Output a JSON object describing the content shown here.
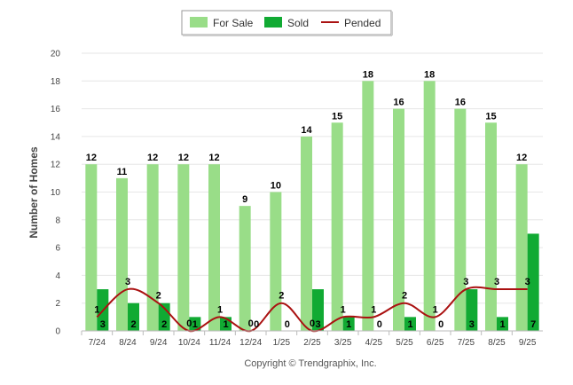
{
  "chart_data": {
    "type": "bar",
    "categories": [
      "7/24",
      "8/24",
      "9/24",
      "10/24",
      "11/24",
      "12/24",
      "1/25",
      "2/25",
      "3/25",
      "4/25",
      "5/25",
      "6/25",
      "7/25",
      "8/25",
      "9/25"
    ],
    "series": [
      {
        "name": "For Sale",
        "kind": "bar",
        "color": "#99dd88",
        "values": [
          12,
          11,
          12,
          12,
          12,
          9,
          10,
          14,
          15,
          18,
          16,
          18,
          16,
          15,
          12
        ]
      },
      {
        "name": "Sold",
        "kind": "bar",
        "color": "#11aa33",
        "values": [
          3,
          2,
          2,
          1,
          1,
          0,
          0,
          3,
          1,
          0,
          1,
          0,
          3,
          1,
          7
        ]
      },
      {
        "name": "Pended",
        "kind": "line",
        "color": "#aa1111",
        "values": [
          1,
          3,
          2,
          0,
          1,
          0,
          2,
          0,
          1,
          1,
          2,
          1,
          3,
          3,
          3
        ]
      }
    ],
    "title": "",
    "xlabel": "",
    "ylabel": "Number of Homes",
    "ylim": [
      0,
      20
    ],
    "yticks": [
      0,
      2,
      4,
      6,
      8,
      10,
      12,
      14,
      16,
      18,
      20
    ],
    "legend_position": "top-center",
    "credit": "Copyright © Trendgraphix, Inc."
  }
}
